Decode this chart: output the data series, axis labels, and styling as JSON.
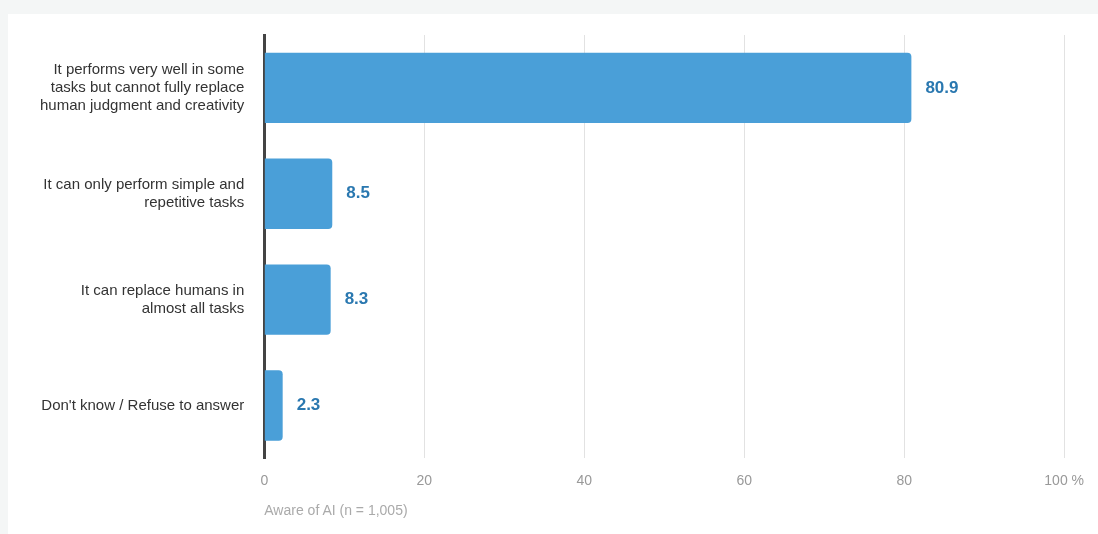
{
  "chart_data": {
    "type": "bar",
    "orientation": "horizontal",
    "categories": [
      "It performs very well in some tasks but cannot fully replace human judgment and creativity",
      "It can only perform simple and repetitive tasks",
      "It can replace humans in almost all tasks",
      "Don't know / Refuse to answer"
    ],
    "values": [
      80.9,
      8.5,
      8.3,
      2.3
    ],
    "color": "#4a9fd8",
    "xlim": [
      0,
      100
    ],
    "xticks": [
      0,
      20,
      40,
      60,
      80,
      {
        "value": 100,
        "label": "100 %"
      }
    ],
    "xlabel": "Aware of AI (n = 1,005)",
    "grid": "x",
    "data_labels": true,
    "legend": false
  }
}
